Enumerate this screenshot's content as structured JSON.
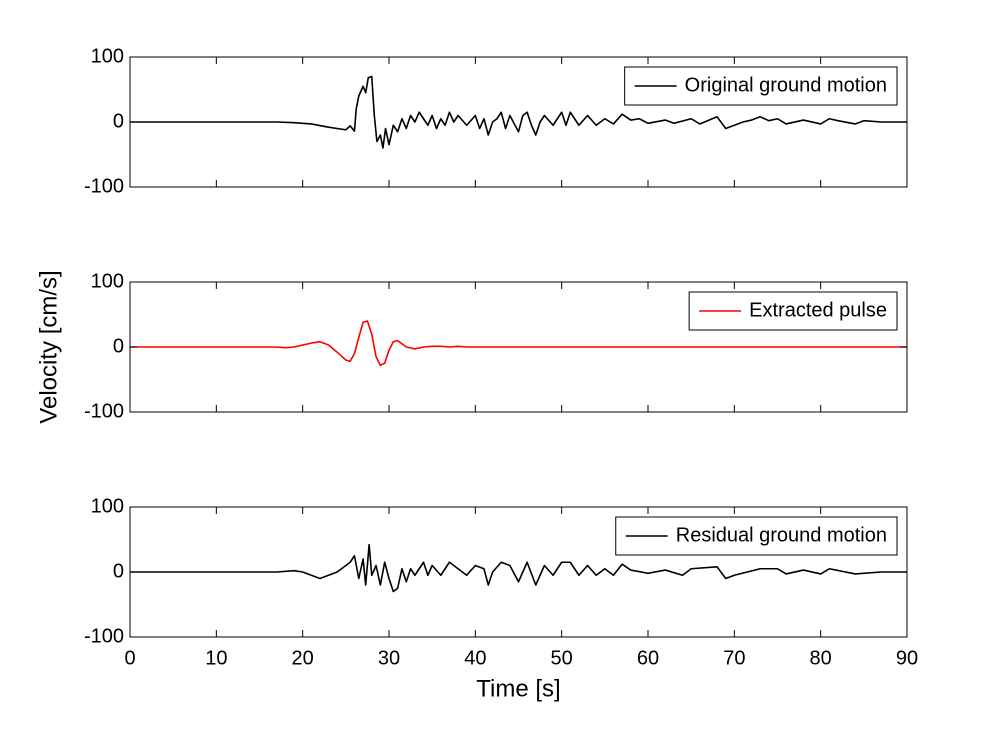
{
  "chart_data": [
    {
      "type": "line",
      "legend": "upper right",
      "xlim": [
        0,
        90
      ],
      "ylim": [
        -100,
        100
      ],
      "yticks": [
        -100,
        0,
        100
      ],
      "xticks": [
        0,
        10,
        20,
        30,
        40,
        50,
        60,
        70,
        80,
        90
      ],
      "x": [
        0,
        10,
        17,
        19,
        21,
        23,
        24,
        25,
        25.5,
        26,
        26.2,
        26.5,
        27,
        27.3,
        27.6,
        28,
        28.3,
        28.6,
        29,
        29.3,
        29.6,
        30,
        30.5,
        31,
        31.5,
        32,
        32.5,
        33,
        33.5,
        34,
        34.5,
        35,
        35.5,
        36,
        36.5,
        37,
        37.5,
        38,
        39,
        40,
        40.5,
        41,
        41.5,
        42,
        42.5,
        43,
        43.5,
        44,
        45,
        45.5,
        46,
        46.5,
        47,
        47.5,
        48,
        49,
        50,
        50.5,
        51,
        52,
        53,
        54,
        55,
        56,
        57,
        58,
        59,
        60,
        62,
        63,
        65,
        66,
        68,
        69,
        70,
        71,
        72,
        73,
        74,
        75,
        76,
        78,
        80,
        81,
        82,
        84,
        85,
        87,
        90
      ],
      "series": [
        {
          "name": "Original ground motion",
          "color": "#000000",
          "values": [
            0,
            0,
            0,
            -1,
            -3,
            -8,
            -10,
            -12,
            -6,
            -14,
            20,
            40,
            55,
            45,
            68,
            70,
            10,
            -30,
            -20,
            -40,
            -10,
            -35,
            -5,
            -15,
            5,
            -10,
            10,
            0,
            15,
            5,
            -5,
            10,
            -10,
            5,
            -5,
            15,
            0,
            10,
            -5,
            10,
            -10,
            5,
            -20,
            0,
            5,
            15,
            -10,
            10,
            -15,
            10,
            15,
            -5,
            -20,
            0,
            10,
            -5,
            15,
            -5,
            15,
            -5,
            10,
            -5,
            5,
            -3,
            12,
            3,
            5,
            -2,
            3,
            -2,
            5,
            -3,
            8,
            -10,
            -5,
            0,
            3,
            8,
            2,
            5,
            -3,
            3,
            -3,
            5,
            2,
            -3,
            2,
            0,
            0
          ]
        }
      ]
    },
    {
      "type": "line",
      "legend": "upper right",
      "ylabel": "Velocity [cm/s]",
      "xlim": [
        0,
        90
      ],
      "ylim": [
        -100,
        100
      ],
      "yticks": [
        -100,
        0,
        100
      ],
      "xticks": [
        0,
        10,
        20,
        30,
        40,
        50,
        60,
        70,
        80,
        90
      ],
      "x": [
        0,
        17,
        18,
        19,
        20,
        21,
        22,
        23,
        24,
        25,
        25.5,
        26,
        26.5,
        27,
        27.5,
        28,
        28.5,
        29,
        29.5,
        30,
        30.5,
        31,
        32,
        33,
        34,
        35,
        36,
        37,
        38,
        39,
        90
      ],
      "series": [
        {
          "name": "Extracted pulse",
          "color": "#ff0000",
          "values": [
            0,
            0,
            -1,
            0,
            3,
            6,
            8,
            3,
            -8,
            -20,
            -22,
            -10,
            15,
            38,
            40,
            20,
            -15,
            -28,
            -25,
            -5,
            8,
            10,
            0,
            -3,
            0,
            1,
            1,
            0,
            1,
            0,
            0
          ]
        }
      ]
    },
    {
      "type": "line",
      "legend": "upper right",
      "xlabel": "Time [s]",
      "xlim": [
        0,
        90
      ],
      "ylim": [
        -100,
        100
      ],
      "yticks": [
        -100,
        0,
        100
      ],
      "xticks": [
        0,
        10,
        20,
        30,
        40,
        50,
        60,
        70,
        80,
        90
      ],
      "x": [
        0,
        17,
        19,
        20,
        21,
        22,
        23,
        24,
        25,
        25.5,
        26,
        26.5,
        27,
        27.3,
        27.7,
        28,
        28.5,
        29,
        29.5,
        30,
        30.5,
        31,
        31.5,
        32,
        32.5,
        33,
        34,
        34.5,
        35,
        36,
        37,
        38,
        39,
        40,
        41,
        41.5,
        42,
        43,
        44,
        45,
        46,
        47,
        48,
        49,
        50,
        51,
        52,
        53,
        54,
        55,
        56,
        57,
        58,
        60,
        62,
        64,
        65,
        68,
        69,
        70,
        73,
        75,
        76,
        78,
        80,
        81,
        84,
        87,
        90
      ],
      "series": [
        {
          "name": "Residual ground motion",
          "color": "#000000",
          "values": [
            0,
            0,
            2,
            0,
            -5,
            -10,
            -5,
            0,
            10,
            15,
            25,
            -10,
            20,
            -20,
            42,
            -5,
            10,
            -20,
            15,
            -10,
            -30,
            -25,
            5,
            -15,
            5,
            -5,
            15,
            -5,
            10,
            -5,
            15,
            5,
            -5,
            10,
            5,
            -20,
            0,
            15,
            10,
            -15,
            15,
            -20,
            10,
            -5,
            15,
            15,
            -5,
            10,
            -5,
            5,
            -5,
            12,
            3,
            -2,
            3,
            -5,
            5,
            8,
            -10,
            -5,
            5,
            5,
            -3,
            3,
            -3,
            5,
            -3,
            0,
            0
          ]
        }
      ]
    }
  ]
}
